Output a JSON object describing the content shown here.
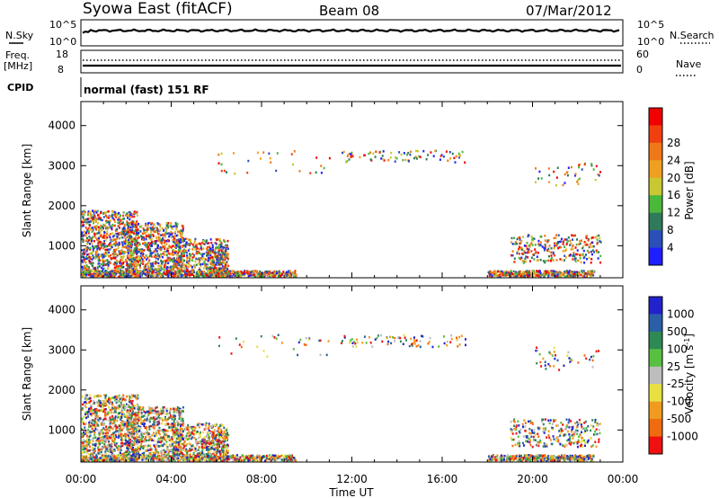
{
  "header": {
    "station": "Syowa East (fitACF)",
    "beam": "Beam 08",
    "date": "07/Mar/2012"
  },
  "top_panels": {
    "nsky_label": "N.Sky",
    "nsky_ticks": [
      "10^5",
      "10^0"
    ],
    "nsearch_label": "N.Search",
    "nsearch_ticks": [
      "10^5",
      "10^0"
    ],
    "freq_label_top": "Freq.",
    "freq_label_bottom": "[MHz]",
    "freq_ticks": [
      "18",
      "8"
    ],
    "nave_label": "Nave",
    "nave_ticks": [
      "60",
      "0"
    ],
    "cpid_label": "CPID",
    "cpid_text": "normal (fast) 151 RF"
  },
  "colors": {
    "power_scale": [
      "#1e1eff",
      "#2a4fb8",
      "#2f7a5a",
      "#4ab83a",
      "#c8c832",
      "#f0a020",
      "#f07818",
      "#f04010",
      "#f00000"
    ],
    "velocity_scale": [
      "#2222cc",
      "#2a5fa8",
      "#2e8a55",
      "#58c040",
      "#bdbdbd",
      "#e8e040",
      "#f09a20",
      "#f06a10",
      "#f01010"
    ]
  },
  "chart_data": [
    {
      "type": "heatmap",
      "name_panel": "power",
      "ylabel": "Slant Range [km]",
      "yticks": [
        "1000",
        "2000",
        "3000",
        "4000"
      ],
      "ylim": [
        200,
        4600
      ],
      "xlim": [
        0,
        24
      ],
      "colorbar_label": "Power [dB]",
      "colorbar_ticks": [
        "4",
        "8",
        "12",
        "16",
        "20",
        "24",
        "28"
      ],
      "clim": [
        0,
        30
      ]
    },
    {
      "type": "heatmap",
      "name_panel": "velocity",
      "ylabel": "Slant Range [km]",
      "yticks": [
        "1000",
        "2000",
        "3000",
        "4000"
      ],
      "ylim": [
        200,
        4600
      ],
      "xlim": [
        0,
        24
      ],
      "colorbar_label": "Velocity [m s^-1]",
      "colorbar_ticks": [
        "1000",
        "500",
        "100",
        "25",
        "-25",
        "-100",
        "-500",
        "-1000"
      ]
    }
  ],
  "time_axis": {
    "label": "Time UT",
    "ticks": [
      "00:00",
      "04:00",
      "08:00",
      "12:00",
      "16:00",
      "20:00",
      "00:00"
    ]
  }
}
